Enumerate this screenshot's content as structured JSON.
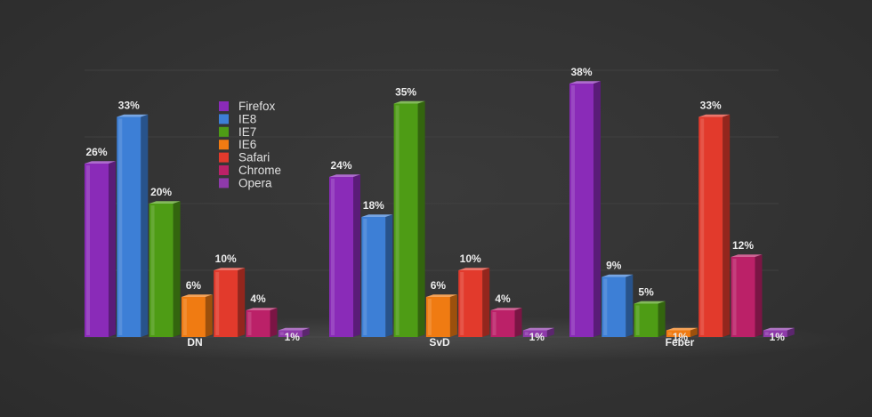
{
  "chart_data": {
    "type": "bar",
    "categories": [
      "DN",
      "SvD",
      "Feber"
    ],
    "series": [
      {
        "name": "Firefox",
        "values": [
          26,
          24,
          38
        ]
      },
      {
        "name": "IE8",
        "values": [
          33,
          18,
          9
        ]
      },
      {
        "name": "IE7",
        "values": [
          20,
          35,
          5
        ]
      },
      {
        "name": "IE6",
        "values": [
          6,
          6,
          1
        ]
      },
      {
        "name": "Safari",
        "values": [
          10,
          10,
          33
        ]
      },
      {
        "name": "Chrome",
        "values": [
          4,
          4,
          12
        ]
      },
      {
        "name": "Opera",
        "values": [
          1,
          1,
          1
        ]
      }
    ],
    "value_suffix": "%",
    "ylim": [
      0,
      40
    ],
    "grid": true,
    "legend_position": "top-left",
    "colors": [
      "#8a2bb8",
      "#3d7fd6",
      "#4e9c15",
      "#f07b12",
      "#e23a2c",
      "#bb2168",
      "#8e3aaa"
    ]
  }
}
